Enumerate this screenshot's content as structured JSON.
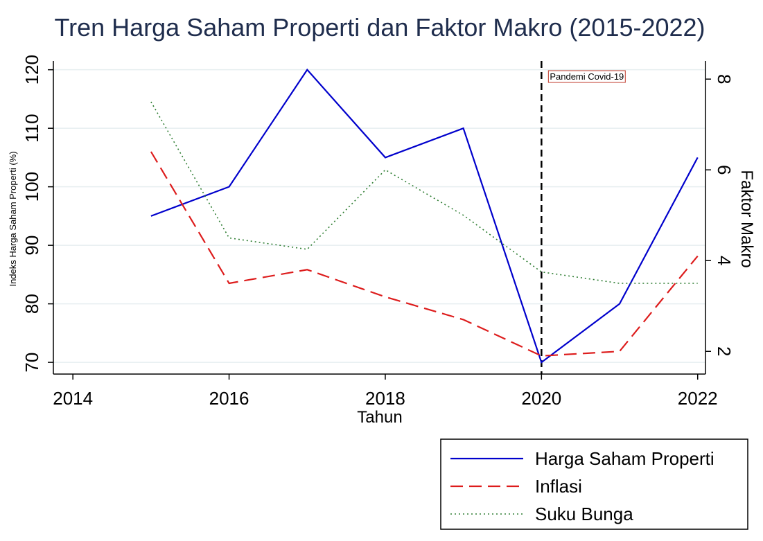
{
  "chart_data": {
    "type": "line",
    "title": "Tren Harga Saham Properti dan Faktor Makro (2015-2022)",
    "xlabel": "Tahun",
    "ylabel_left": "Indeks Harga Saham Properti (%)",
    "ylabel_right": "Faktor Makro",
    "x": [
      2015,
      2016,
      2017,
      2018,
      2019,
      2020,
      2021,
      2022
    ],
    "xlim": [
      2013.75,
      2022.1
    ],
    "xticks": [
      2014,
      2016,
      2018,
      2020,
      2022
    ],
    "ylim_left": [
      68.0,
      121.5
    ],
    "yticks_left": [
      70,
      80,
      90,
      100,
      110,
      120
    ],
    "ylim_right": [
      1.5,
      8.4
    ],
    "yticks_right": [
      2,
      4,
      6,
      8
    ],
    "grid": true,
    "legend_position": "bottom-right",
    "series": [
      {
        "name": "Harga Saham Properti",
        "axis": "left",
        "color": "#0000cc",
        "style": "solid",
        "values": [
          95,
          100,
          120,
          105,
          110,
          70,
          80,
          105
        ]
      },
      {
        "name": "Inflasi",
        "axis": "right",
        "color": "#dd1c1c",
        "style": "dashed",
        "values": [
          6.4,
          3.5,
          3.8,
          3.2,
          2.7,
          1.9,
          2.0,
          4.1
        ]
      },
      {
        "name": "Suku Bunga",
        "axis": "right",
        "color": "#2e7d32",
        "style": "dotted",
        "values": [
          7.5,
          4.5,
          4.25,
          6.0,
          5.0,
          3.75,
          3.5,
          3.5
        ]
      }
    ],
    "annotation": {
      "x": 2020,
      "label": "Pandemi Covid-19",
      "color": "#000000",
      "box_color": "#c0392b"
    }
  }
}
